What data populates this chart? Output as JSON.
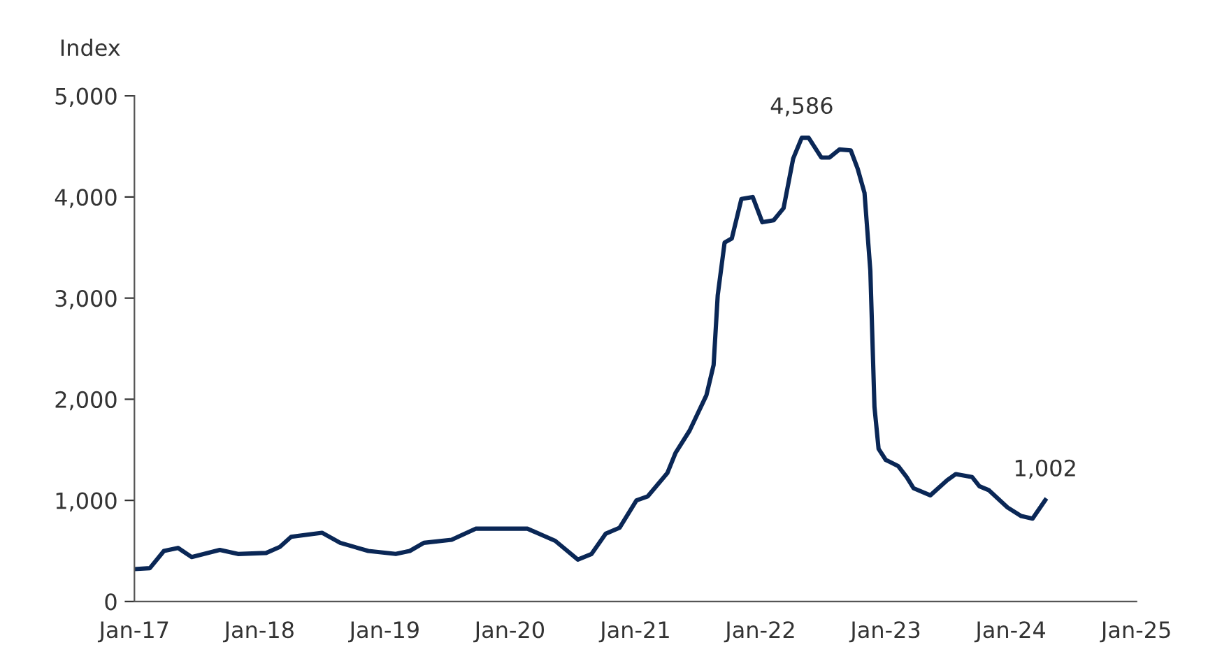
{
  "chart_data": {
    "type": "line",
    "ylabel": "Index",
    "x": [
      "2017-01-01",
      "2017-02-15",
      "2017-03-28",
      "2017-05-08",
      "2017-06-17",
      "2017-09-07",
      "2017-10-30",
      "2018-01-20",
      "2018-03-01",
      "2018-04-03",
      "2018-07-02",
      "2018-08-24",
      "2018-11-14",
      "2019-02-02",
      "2019-03-15",
      "2019-04-25",
      "2019-07-15",
      "2019-09-23",
      "2020-02-21",
      "2020-05-12",
      "2020-07-17",
      "2020-08-26",
      "2020-10-06",
      "2020-11-16",
      "2021-01-04",
      "2021-02-06",
      "2021-04-04",
      "2021-04-28",
      "2021-06-08",
      "2021-07-27",
      "2021-08-17",
      "2021-08-29",
      "2021-09-18",
      "2021-10-09",
      "2021-11-06",
      "2021-12-09",
      "2022-01-06",
      "2022-02-08",
      "2022-03-09",
      "2022-04-06",
      "2022-05-01",
      "2022-05-21",
      "2022-06-27",
      "2022-07-21",
      "2022-08-19",
      "2022-09-21",
      "2022-10-11",
      "2022-10-31",
      "2022-11-17",
      "2022-11-29",
      "2022-12-11",
      "2023-01-01",
      "2023-02-06",
      "2023-03-03",
      "2023-03-23",
      "2023-05-11",
      "2023-06-29",
      "2023-07-24",
      "2023-09-10",
      "2023-10-01",
      "2023-10-29",
      "2023-12-22",
      "2024-01-31",
      "2024-03-04",
      "2024-04-10"
    ],
    "series": [
      {
        "color": "#0a2756",
        "values": [
          320,
          330,
          500,
          530,
          440,
          510,
          470,
          480,
          540,
          640,
          680,
          580,
          500,
          470,
          500,
          580,
          610,
          720,
          720,
          600,
          415,
          470,
          670,
          730,
          1000,
          1040,
          1270,
          1470,
          1690,
          2040,
          2340,
          3030,
          3550,
          3590,
          3980,
          4000,
          3750,
          3770,
          3890,
          4380,
          4586,
          4586,
          4390,
          4390,
          4470,
          4460,
          4280,
          4040,
          3270,
          1925,
          1510,
          1400,
          1340,
          1230,
          1120,
          1050,
          1200,
          1260,
          1230,
          1140,
          1100,
          930,
          845,
          820,
          1002
        ]
      }
    ],
    "xlim": [
      "2017-01-01",
      "2025-01-01"
    ],
    "xticks": [
      {
        "value": "2017-01-01",
        "label": "Jan-17"
      },
      {
        "value": "2018-01-01",
        "label": "Jan-18"
      },
      {
        "value": "2019-01-01",
        "label": "Jan-19"
      },
      {
        "value": "2020-01-01",
        "label": "Jan-20"
      },
      {
        "value": "2021-01-01",
        "label": "Jan-21"
      },
      {
        "value": "2022-01-01",
        "label": "Jan-22"
      },
      {
        "value": "2023-01-01",
        "label": "Jan-23"
      },
      {
        "value": "2024-01-01",
        "label": "Jan-24"
      },
      {
        "value": "2025-01-01",
        "label": "Jan-25"
      }
    ],
    "ylim": [
      0,
      5000
    ],
    "yticks": [
      0,
      {
        "value": 1000,
        "label": "1,000"
      },
      {
        "value": 2000,
        "label": "2,000"
      },
      {
        "value": 3000,
        "label": "3,000"
      },
      {
        "value": 4000,
        "label": "4,000"
      },
      {
        "value": 5000,
        "label": "5,000"
      }
    ],
    "annotations": [
      {
        "text": "4,586",
        "x": "2022-05-01",
        "y": 4586
      },
      {
        "text": "1,002",
        "x": "2024-04-10",
        "y": 1002
      }
    ],
    "grid": false
  }
}
